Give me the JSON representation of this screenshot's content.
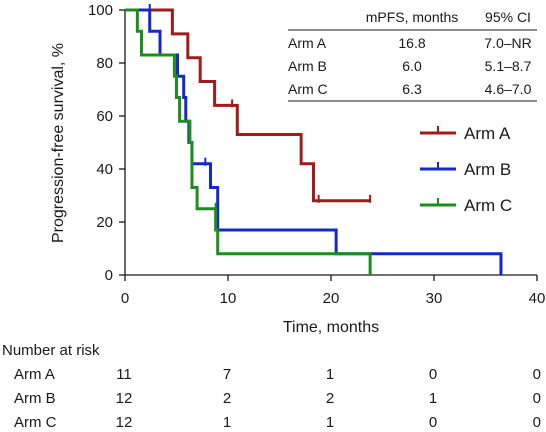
{
  "chart_data": {
    "type": "line",
    "subtype": "kaplan-meier step",
    "xlabel": "Time, months",
    "ylabel": "Progression-free survival, %",
    "xlim": [
      0,
      40
    ],
    "ylim": [
      0,
      100
    ],
    "xticks": [
      "0",
      "10",
      "20",
      "30",
      "40"
    ],
    "yticks": [
      "0",
      "20",
      "40",
      "60",
      "80",
      "100"
    ],
    "grid": false,
    "legend_position": "right",
    "series": [
      {
        "name": "Arm A",
        "color": "#a01b1b",
        "steps": [
          [
            0,
            100
          ],
          [
            4.6,
            91
          ],
          [
            6.1,
            82
          ],
          [
            7.3,
            73
          ],
          [
            8.7,
            64
          ],
          [
            10.9,
            53
          ],
          [
            17.1,
            42
          ],
          [
            18.3,
            28
          ],
          [
            23.8,
            28
          ]
        ],
        "censored": [
          [
            10.4,
            64
          ],
          [
            18.8,
            28
          ],
          [
            23.8,
            28
          ]
        ]
      },
      {
        "name": "Arm B",
        "color": "#1628c8",
        "steps": [
          [
            0,
            100
          ],
          [
            2.4,
            92
          ],
          [
            3.4,
            83
          ],
          [
            5.1,
            75
          ],
          [
            5.7,
            67
          ],
          [
            5.9,
            58
          ],
          [
            6.2,
            50
          ],
          [
            6.5,
            42
          ],
          [
            8.3,
            33
          ],
          [
            9.0,
            17
          ],
          [
            20.5,
            8
          ],
          [
            36.5,
            0
          ]
        ],
        "censored": [
          [
            2.4,
            100
          ],
          [
            7.8,
            42
          ]
        ]
      },
      {
        "name": "Arm C",
        "color": "#1f8c1f",
        "steps": [
          [
            0,
            100
          ],
          [
            1.2,
            92
          ],
          [
            1.6,
            83
          ],
          [
            4.8,
            75
          ],
          [
            5.0,
            67
          ],
          [
            5.3,
            58
          ],
          [
            6.3,
            50
          ],
          [
            6.5,
            33
          ],
          [
            7.0,
            25
          ],
          [
            8.8,
            17
          ],
          [
            9.0,
            8
          ],
          [
            23.8,
            0
          ]
        ],
        "censored": [
          [
            8.8,
            25
          ]
        ]
      }
    ],
    "summary_table": {
      "headers": [
        "",
        "mPFS, months",
        "95% CI"
      ],
      "rows": [
        [
          "Arm A",
          "16.8",
          "7.0–NR"
        ],
        [
          "Arm B",
          "6.0",
          "5.1–8.7"
        ],
        [
          "Arm C",
          "6.3",
          "4.6–7.0"
        ]
      ]
    },
    "number_at_risk": {
      "title": "Number at risk",
      "rows": [
        {
          "label": "Arm A",
          "values": [
            "11",
            "7",
            "1",
            "0",
            "0"
          ]
        },
        {
          "label": "Arm B",
          "values": [
            "12",
            "2",
            "2",
            "1",
            "0"
          ]
        },
        {
          "label": "Arm C",
          "values": [
            "12",
            "1",
            "1",
            "0",
            "0"
          ]
        }
      ]
    }
  }
}
